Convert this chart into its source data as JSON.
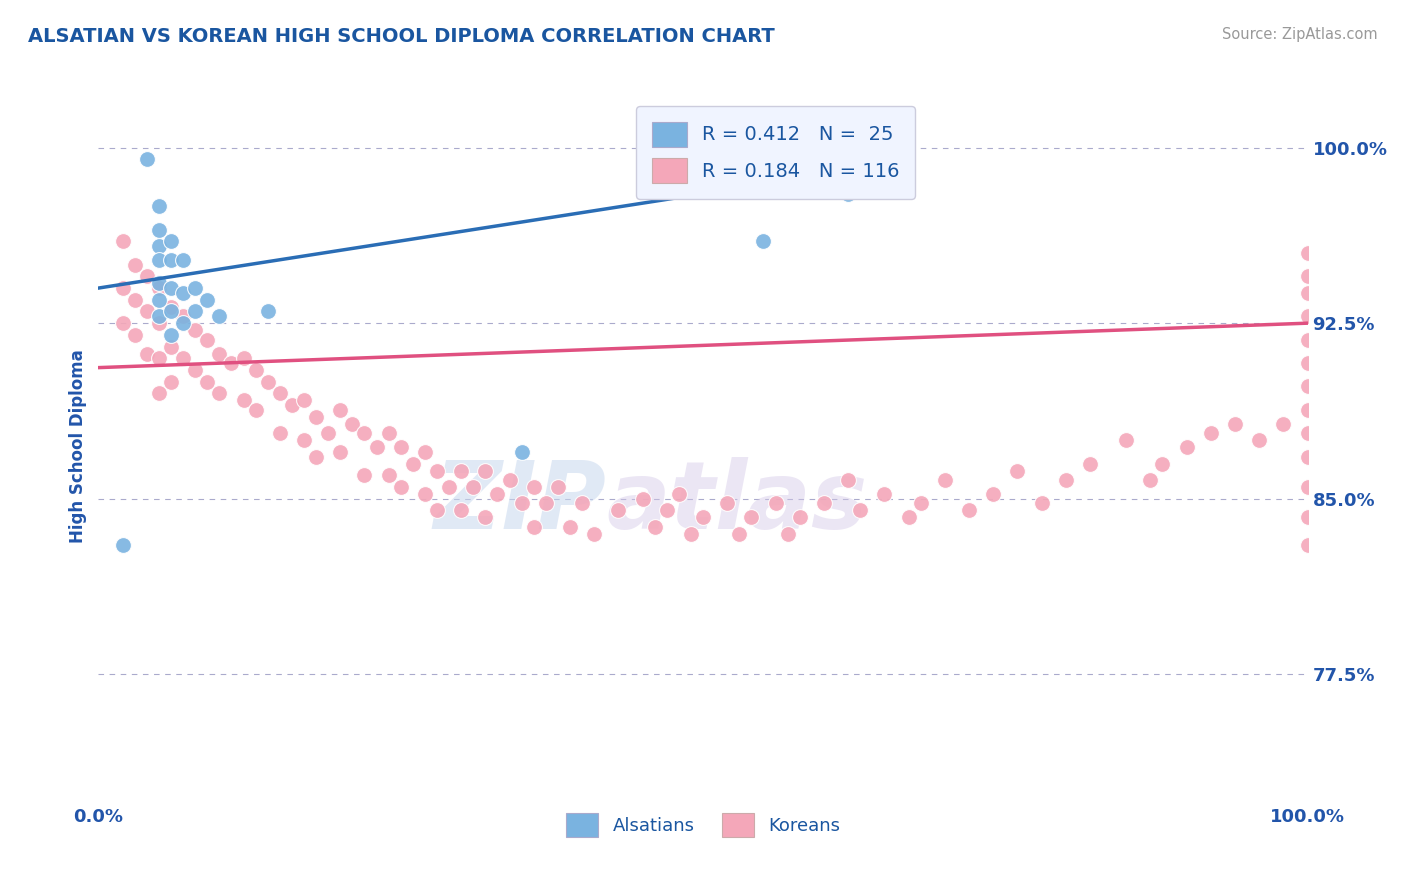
{
  "title": "ALSATIAN VS KOREAN HIGH SCHOOL DIPLOMA CORRELATION CHART",
  "source_text": "Source: ZipAtlas.com",
  "ylabel": "High School Diploma",
  "watermark_zip": "ZIP",
  "watermark_atlas": "atlas",
  "x_min": 0.0,
  "x_max": 1.0,
  "y_min": 0.72,
  "y_max": 1.025,
  "yticks": [
    0.775,
    0.85,
    0.925,
    1.0
  ],
  "ytick_labels": [
    "77.5%",
    "85.0%",
    "92.5%",
    "100.0%"
  ],
  "xtick_labels": [
    "0.0%",
    "100.0%"
  ],
  "xticks": [
    0.0,
    1.0
  ],
  "alsatian_color": "#7ab3e0",
  "korean_color": "#f4a7b9",
  "alsatian_line_color": "#2a6db5",
  "korean_line_color": "#e05080",
  "alsatian_R": 0.412,
  "alsatian_N": 25,
  "korean_R": 0.184,
  "korean_N": 116,
  "title_color": "#1a56a0",
  "axis_label_color": "#2255aa",
  "tick_color": "#2255aa",
  "grid_color": "#aaaacc",
  "alsatian_trendline": [
    0.0,
    0.94,
    0.62,
    0.99
  ],
  "korean_trendline": [
    0.0,
    0.906,
    1.0,
    0.925
  ],
  "alsatian_x": [
    0.02,
    0.04,
    0.05,
    0.05,
    0.05,
    0.05,
    0.05,
    0.05,
    0.05,
    0.06,
    0.06,
    0.06,
    0.06,
    0.06,
    0.07,
    0.07,
    0.07,
    0.08,
    0.08,
    0.09,
    0.1,
    0.14,
    0.35,
    0.55,
    0.62
  ],
  "alsatian_y": [
    0.83,
    0.995,
    0.975,
    0.965,
    0.958,
    0.952,
    0.942,
    0.935,
    0.928,
    0.96,
    0.952,
    0.94,
    0.93,
    0.92,
    0.952,
    0.938,
    0.925,
    0.94,
    0.93,
    0.935,
    0.928,
    0.93,
    0.87,
    0.96,
    0.98
  ],
  "korean_x": [
    0.02,
    0.02,
    0.02,
    0.03,
    0.03,
    0.03,
    0.04,
    0.04,
    0.04,
    0.05,
    0.05,
    0.05,
    0.05,
    0.06,
    0.06,
    0.06,
    0.07,
    0.07,
    0.08,
    0.08,
    0.09,
    0.09,
    0.1,
    0.1,
    0.11,
    0.12,
    0.12,
    0.13,
    0.13,
    0.14,
    0.15,
    0.15,
    0.16,
    0.17,
    0.17,
    0.18,
    0.18,
    0.19,
    0.2,
    0.2,
    0.21,
    0.22,
    0.22,
    0.23,
    0.24,
    0.24,
    0.25,
    0.25,
    0.26,
    0.27,
    0.27,
    0.28,
    0.28,
    0.29,
    0.3,
    0.3,
    0.31,
    0.32,
    0.32,
    0.33,
    0.34,
    0.35,
    0.36,
    0.36,
    0.37,
    0.38,
    0.39,
    0.4,
    0.41,
    0.43,
    0.45,
    0.46,
    0.47,
    0.48,
    0.49,
    0.5,
    0.52,
    0.53,
    0.54,
    0.56,
    0.57,
    0.58,
    0.6,
    0.62,
    0.63,
    0.65,
    0.67,
    0.68,
    0.7,
    0.72,
    0.74,
    0.76,
    0.78,
    0.8,
    0.82,
    0.85,
    0.87,
    0.88,
    0.9,
    0.92,
    0.94,
    0.96,
    0.98,
    1.0,
    1.0,
    1.0,
    1.0,
    1.0,
    1.0,
    1.0,
    1.0,
    1.0,
    1.0,
    1.0,
    1.0,
    1.0
  ],
  "korean_y": [
    0.96,
    0.94,
    0.925,
    0.95,
    0.935,
    0.92,
    0.945,
    0.93,
    0.912,
    0.94,
    0.925,
    0.91,
    0.895,
    0.932,
    0.915,
    0.9,
    0.928,
    0.91,
    0.922,
    0.905,
    0.918,
    0.9,
    0.912,
    0.895,
    0.908,
    0.91,
    0.892,
    0.905,
    0.888,
    0.9,
    0.895,
    0.878,
    0.89,
    0.892,
    0.875,
    0.885,
    0.868,
    0.878,
    0.888,
    0.87,
    0.882,
    0.878,
    0.86,
    0.872,
    0.878,
    0.86,
    0.872,
    0.855,
    0.865,
    0.87,
    0.852,
    0.862,
    0.845,
    0.855,
    0.862,
    0.845,
    0.855,
    0.862,
    0.842,
    0.852,
    0.858,
    0.848,
    0.855,
    0.838,
    0.848,
    0.855,
    0.838,
    0.848,
    0.835,
    0.845,
    0.85,
    0.838,
    0.845,
    0.852,
    0.835,
    0.842,
    0.848,
    0.835,
    0.842,
    0.848,
    0.835,
    0.842,
    0.848,
    0.858,
    0.845,
    0.852,
    0.842,
    0.848,
    0.858,
    0.845,
    0.852,
    0.862,
    0.848,
    0.858,
    0.865,
    0.875,
    0.858,
    0.865,
    0.872,
    0.878,
    0.882,
    0.875,
    0.882,
    0.955,
    0.945,
    0.938,
    0.928,
    0.918,
    0.908,
    0.898,
    0.888,
    0.878,
    0.868,
    0.855,
    0.842,
    0.83
  ]
}
